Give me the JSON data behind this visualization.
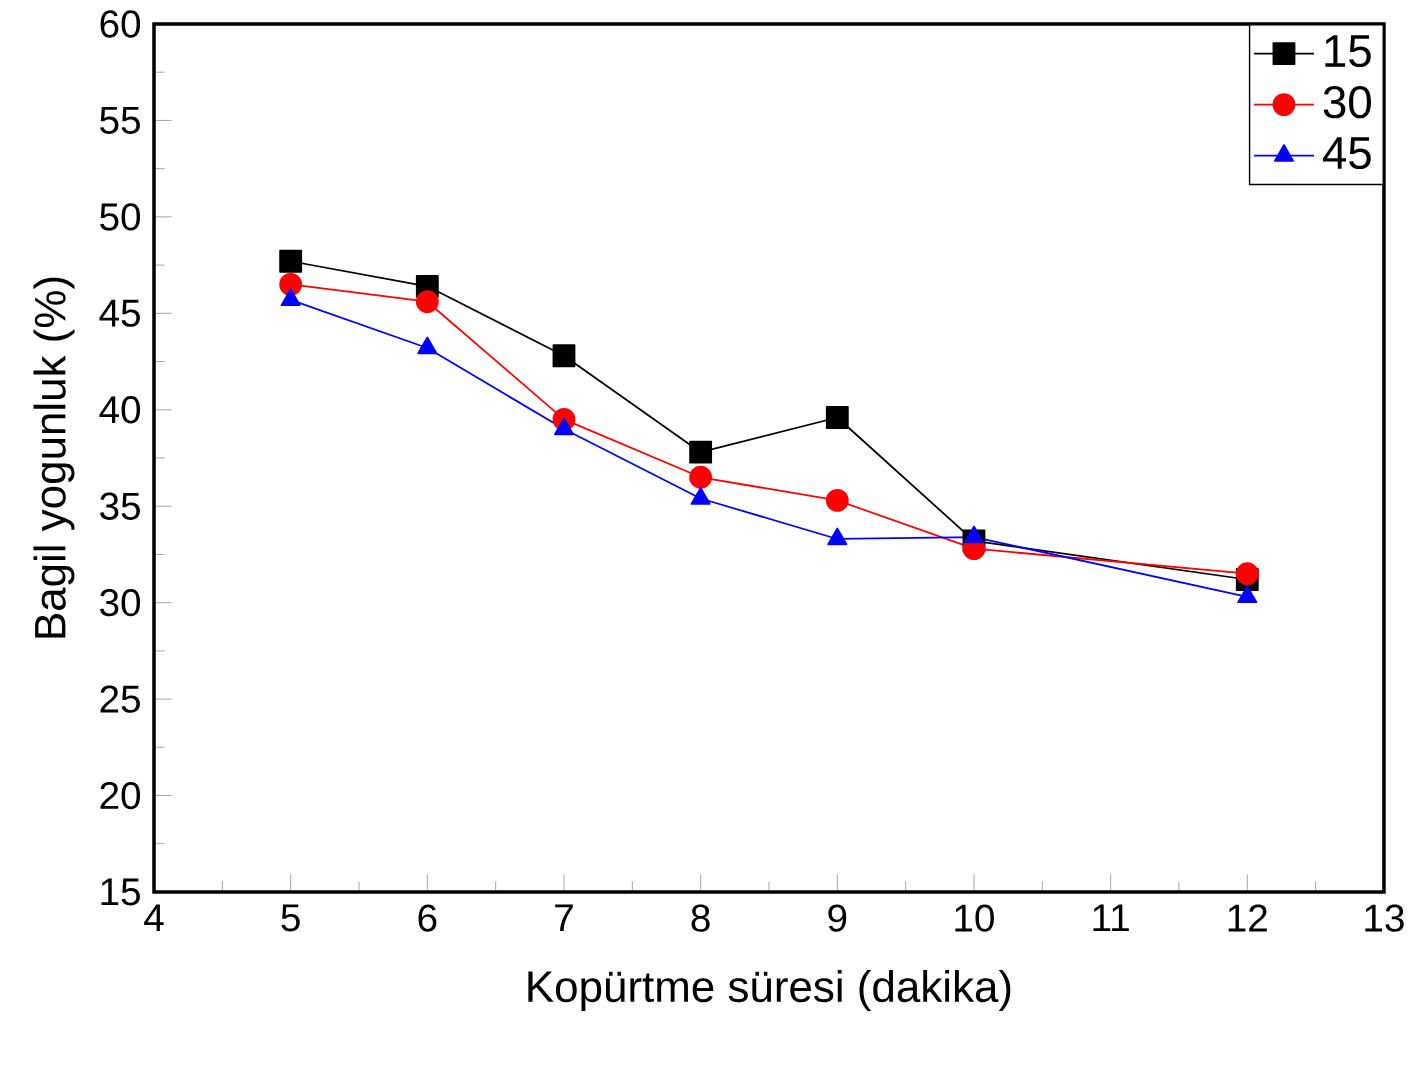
{
  "chart_data": {
    "type": "line",
    "xlabel": "Kopürtme süresi (dakika)",
    "ylabel": "Bagil yogunluk (%)",
    "x": [
      5,
      6,
      7,
      8,
      9,
      10,
      12
    ],
    "series": [
      {
        "name": "15",
        "color": "#000000",
        "marker": "square",
        "values": [
          47.7,
          46.4,
          42.8,
          37.8,
          39.6,
          33.2,
          31.2
        ]
      },
      {
        "name": "30",
        "color": "#ff0000",
        "marker": "circle",
        "values": [
          46.5,
          45.6,
          39.5,
          36.5,
          35.3,
          32.8,
          31.5
        ]
      },
      {
        "name": "45",
        "color": "#0000ff",
        "marker": "triangle",
        "values": [
          45.7,
          43.2,
          39.0,
          35.4,
          33.3,
          33.4,
          30.3
        ]
      }
    ],
    "xlim": [
      4,
      13
    ],
    "xticks": [
      4,
      5,
      6,
      7,
      8,
      9,
      10,
      11,
      12,
      13
    ],
    "ylim": [
      15,
      60
    ],
    "yticks": [
      15,
      20,
      25,
      30,
      35,
      40,
      45,
      50,
      55,
      60
    ],
    "legend": "top right",
    "line_style": "solid"
  }
}
